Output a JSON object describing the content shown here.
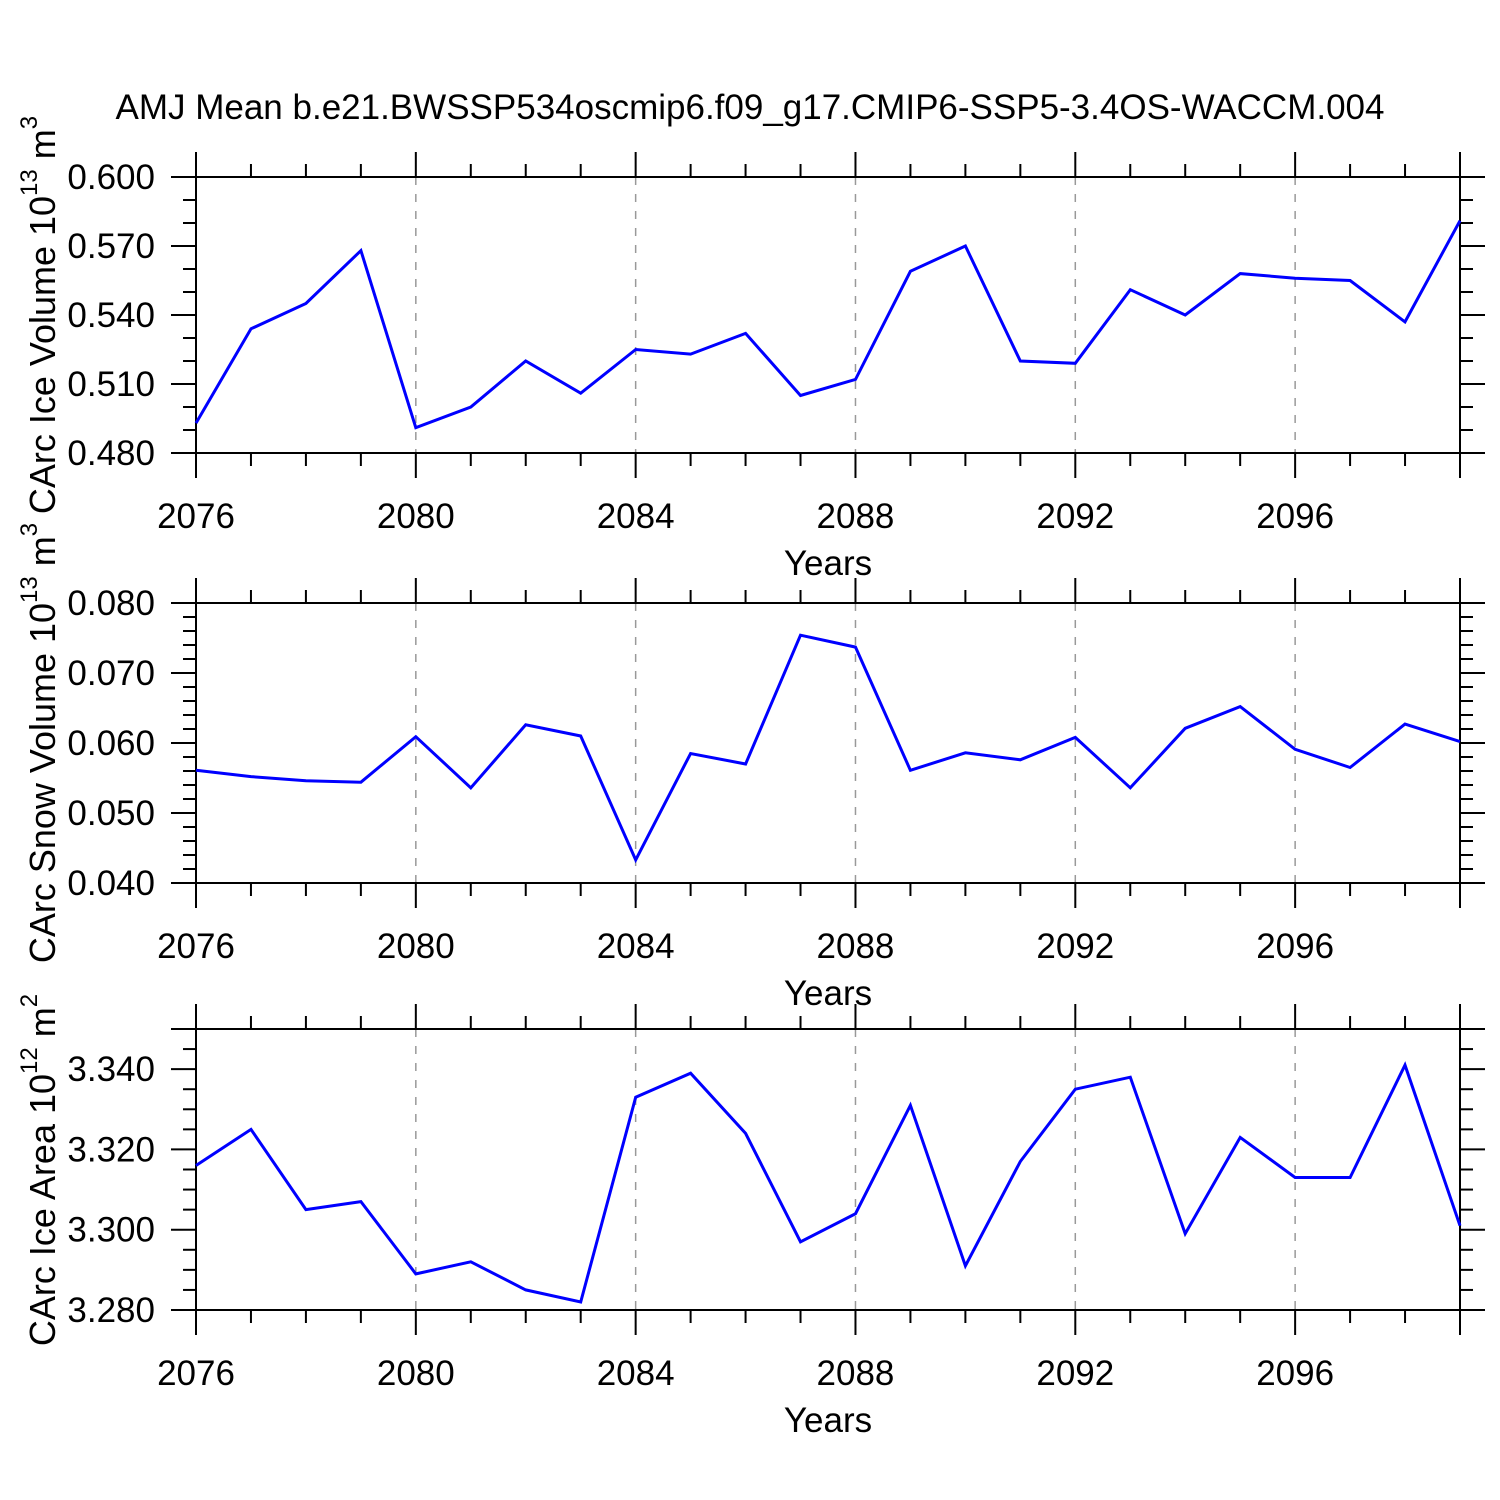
{
  "title": "AMJ Mean b.e21.BWSSP534oscmip6.f09_g17.CMIP6-SSP5-3.4OS-WACCM.004",
  "xlabel": "Years",
  "colors": {
    "line": "#0000ff",
    "axis": "#000000",
    "grid": "#999999",
    "text": "#000000",
    "background": "#ffffff"
  },
  "x_axis": {
    "range": [
      2076,
      2099
    ],
    "major_tick_years": [
      2076,
      2080,
      2084,
      2088,
      2092,
      2096
    ],
    "major_tick_labels": [
      "2076",
      "2080",
      "2084",
      "2088",
      "2092",
      "2096"
    ],
    "minor_tick_step_years": 1,
    "gridline_years": [
      2080,
      2084,
      2088,
      2092,
      2096
    ]
  },
  "chart_data": [
    {
      "type": "line",
      "name": "ice-volume",
      "ylabel_parts": [
        {
          "text": "CArc Ice Volume 10",
          "sup": false
        },
        {
          "text": "13",
          "sup": true
        },
        {
          "text": " m",
          "sup": false
        },
        {
          "text": "3",
          "sup": true
        }
      ],
      "xlabel": "Years",
      "ylim": [
        0.48,
        0.6
      ],
      "y_major_ticks": [
        0.6,
        0.57,
        0.54,
        0.51,
        0.48
      ],
      "y_major_tick_labels": [
        "0.600",
        "0.570",
        "0.540",
        "0.510",
        "0.480"
      ],
      "y_minor_step": 0.01,
      "grid": true,
      "x": [
        2076,
        2077,
        2078,
        2079,
        2080,
        2081,
        2082,
        2083,
        2084,
        2085,
        2086,
        2087,
        2088,
        2089,
        2090,
        2091,
        2092,
        2093,
        2094,
        2095,
        2096,
        2097,
        2098,
        2099
      ],
      "values": [
        0.493,
        0.534,
        0.545,
        0.568,
        0.491,
        0.5,
        0.52,
        0.506,
        0.525,
        0.523,
        0.532,
        0.505,
        0.512,
        0.559,
        0.57,
        0.52,
        0.519,
        0.551,
        0.54,
        0.558,
        0.556,
        0.555,
        0.537,
        0.581
      ]
    },
    {
      "type": "line",
      "name": "snow-volume",
      "ylabel_parts": [
        {
          "text": "CArc Snow Volume 10",
          "sup": false
        },
        {
          "text": "13",
          "sup": true
        },
        {
          "text": " m",
          "sup": false
        },
        {
          "text": "3",
          "sup": true
        }
      ],
      "xlabel": "Years",
      "ylim": [
        0.04,
        0.08
      ],
      "y_major_ticks": [
        0.08,
        0.07,
        0.06,
        0.05,
        0.04
      ],
      "y_major_tick_labels": [
        "0.080",
        "0.070",
        "0.060",
        "0.050",
        "0.040"
      ],
      "y_minor_step": 0.002,
      "grid": true,
      "x": [
        2076,
        2077,
        2078,
        2079,
        2080,
        2081,
        2082,
        2083,
        2084,
        2085,
        2086,
        2087,
        2088,
        2089,
        2090,
        2091,
        2092,
        2093,
        2094,
        2095,
        2096,
        2097,
        2098,
        2099
      ],
      "values": [
        0.0561,
        0.0552,
        0.0546,
        0.0544,
        0.0609,
        0.0536,
        0.0626,
        0.061,
        0.0433,
        0.0585,
        0.057,
        0.0754,
        0.0737,
        0.0561,
        0.0586,
        0.0576,
        0.0608,
        0.0536,
        0.0621,
        0.0652,
        0.0591,
        0.0565,
        0.0627,
        0.0602
      ]
    },
    {
      "type": "line",
      "name": "ice-area",
      "ylabel_parts": [
        {
          "text": "CArc Ice Area 10",
          "sup": false
        },
        {
          "text": "12",
          "sup": true
        },
        {
          "text": " m",
          "sup": false
        },
        {
          "text": "2",
          "sup": true
        }
      ],
      "xlabel": "Years",
      "ylim": [
        3.28,
        3.35
      ],
      "y_major_ticks": [
        3.34,
        3.32,
        3.3,
        3.28
      ],
      "y_major_tick_labels": [
        "3.340",
        "3.320",
        "3.300",
        "3.280"
      ],
      "y_minor_step": 0.005,
      "grid": true,
      "x": [
        2076,
        2077,
        2078,
        2079,
        2080,
        2081,
        2082,
        2083,
        2084,
        2085,
        2086,
        2087,
        2088,
        2089,
        2090,
        2091,
        2092,
        2093,
        2094,
        2095,
        2096,
        2097,
        2098,
        2099
      ],
      "values": [
        3.316,
        3.325,
        3.305,
        3.307,
        3.289,
        3.292,
        3.285,
        3.282,
        3.333,
        3.339,
        3.324,
        3.297,
        3.304,
        3.331,
        3.291,
        3.317,
        3.335,
        3.338,
        3.299,
        3.323,
        3.313,
        3.313,
        3.341,
        3.301
      ]
    }
  ]
}
